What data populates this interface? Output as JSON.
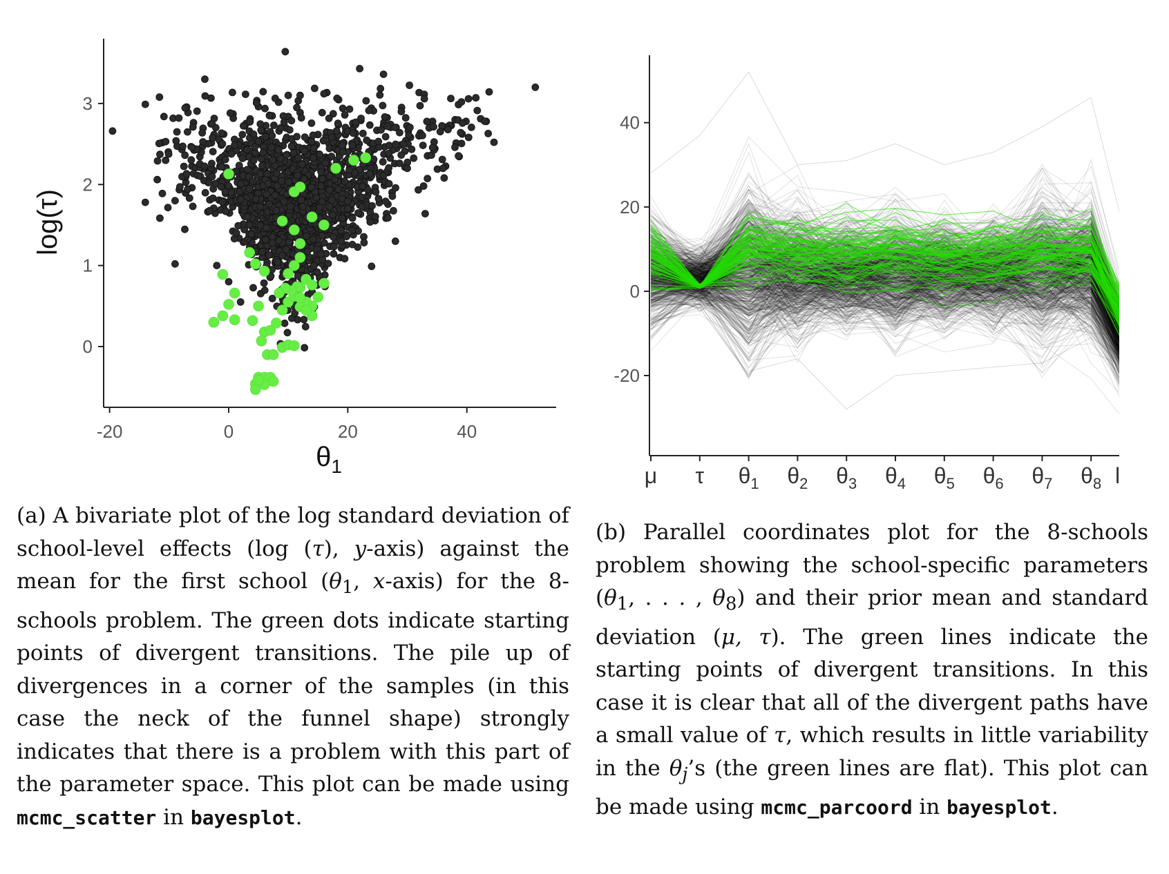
{
  "colors": {
    "points": "#2b2b2b",
    "divergent": "#66ee44",
    "lines": "#000000",
    "divergent_lines": "#22dd00",
    "axis": "#222222",
    "tick_text": "#555555"
  },
  "chart_data": [
    {
      "type": "scatter",
      "panel": "a",
      "xlabel": "θ₁",
      "ylabel": "log(τ)",
      "xlim": [
        -21,
        55
      ],
      "ylim": [
        -0.75,
        3.8
      ],
      "x_ticks": [
        -20,
        0,
        20,
        40
      ],
      "x_tick_labels": [
        "-20",
        "0",
        "20",
        "40"
      ],
      "y_ticks": [
        0,
        1,
        2,
        3
      ],
      "y_tick_labels": [
        "0",
        "1",
        "2",
        "3"
      ],
      "grid": false,
      "series": [
        {
          "role": "samples",
          "x_center": 11,
          "y_center": 1.9,
          "points": [
            [
              -19.5,
              2.66
            ],
            [
              -14,
              2.99
            ],
            [
              -14,
              1.78
            ],
            [
              -12,
              2.06
            ],
            [
              -9,
              1.8
            ],
            [
              -9,
              1.02
            ],
            [
              -4,
              3.3
            ],
            [
              -6,
              2.71
            ],
            [
              9.5,
              3.64
            ],
            [
              22,
              3.43
            ],
            [
              26,
              3.36
            ],
            [
              51.5,
              3.2
            ],
            [
              41.5,
              3.07
            ],
            [
              43,
              2.78
            ],
            [
              38,
              2.46
            ],
            [
              33,
              1.64
            ],
            [
              24,
              0.99
            ],
            [
              0,
              0.8
            ],
            [
              2,
              0.55
            ],
            [
              10,
              3.1
            ],
            [
              12,
              3.1
            ],
            [
              16,
              3.12
            ],
            [
              29,
              2.9
            ],
            [
              30,
              2.2
            ],
            [
              36,
              2.2
            ],
            [
              28,
              1.3
            ],
            [
              -2,
              1.0
            ],
            [
              20,
              1.7
            ]
          ]
        },
        {
          "role": "divergent",
          "points": [
            [
              -2.5,
              0.3
            ],
            [
              -1,
              0.38
            ],
            [
              0,
              0.52
            ],
            [
              1,
              0.33
            ],
            [
              0,
              2.13
            ],
            [
              -1,
              0.89
            ],
            [
              1,
              0.66
            ],
            [
              3.5,
              1.16
            ],
            [
              4.5,
              1.02
            ],
            [
              6,
              0.93
            ],
            [
              5,
              0.5
            ],
            [
              4,
              0.32
            ],
            [
              6,
              0.18
            ],
            [
              7,
              0.2
            ],
            [
              8,
              0.29
            ],
            [
              5.5,
              0.07
            ],
            [
              6.5,
              -0.1
            ],
            [
              7.5,
              -0.1
            ],
            [
              9,
              -0.01
            ],
            [
              10,
              0.02
            ],
            [
              11,
              0.01
            ],
            [
              9,
              0.45
            ],
            [
              10,
              0.55
            ],
            [
              11,
              0.62
            ],
            [
              12,
              0.73
            ],
            [
              13,
              0.83
            ],
            [
              10,
              0.9
            ],
            [
              11,
              1.0
            ],
            [
              12,
              1.1
            ],
            [
              14,
              0.76
            ],
            [
              15,
              0.61
            ],
            [
              14,
              0.5
            ],
            [
              13,
              0.55
            ],
            [
              12,
              0.49
            ],
            [
              11.5,
              0.74
            ],
            [
              10.5,
              0.69
            ],
            [
              9.5,
              0.72
            ],
            [
              8.5,
              0.66
            ],
            [
              12,
              0.6
            ],
            [
              11,
              1.44
            ],
            [
              12,
              1.27
            ],
            [
              11,
              1.91
            ],
            [
              12,
              1.97
            ],
            [
              14,
              1.6
            ],
            [
              9,
              1.55
            ],
            [
              16,
              1.5
            ],
            [
              18,
              2.2
            ],
            [
              21,
              2.3
            ],
            [
              23,
              2.33
            ],
            [
              5,
              -0.38
            ],
            [
              4.5,
              -0.46
            ],
            [
              5.5,
              -0.41
            ],
            [
              6,
              -0.38
            ],
            [
              7,
              -0.38
            ],
            [
              7.5,
              -0.43
            ],
            [
              4.5,
              -0.53
            ],
            [
              6,
              -0.47
            ],
            [
              5,
              -0.42
            ],
            [
              14,
              0.38
            ],
            [
              13,
              0.45
            ],
            [
              16,
              0.78
            ]
          ]
        }
      ]
    },
    {
      "type": "line",
      "panel": "b",
      "subtype": "parallel-coordinates",
      "categories": [
        "μ",
        "τ",
        "θ1",
        "θ2",
        "θ3",
        "θ4",
        "θ5",
        "θ6",
        "θ7",
        "θ8",
        "lp__"
      ],
      "category_labels": [
        {
          "main": "μ",
          "sub": ""
        },
        {
          "main": "τ",
          "sub": ""
        },
        {
          "main": "θ",
          "sub": "1"
        },
        {
          "main": "θ",
          "sub": "2"
        },
        {
          "main": "θ",
          "sub": "3"
        },
        {
          "main": "θ",
          "sub": "4"
        },
        {
          "main": "θ",
          "sub": "5"
        },
        {
          "main": "θ",
          "sub": "6"
        },
        {
          "main": "θ",
          "sub": "7"
        },
        {
          "main": "θ",
          "sub": "8"
        },
        {
          "main": "lp__",
          "sub": ""
        }
      ],
      "ylim": [
        -39,
        56
      ],
      "y_ticks": [
        -20,
        0,
        20,
        40
      ],
      "y_tick_labels": [
        "-20",
        "0",
        "20",
        "40"
      ],
      "grid": false,
      "series": [
        {
          "role": "samples",
          "mean": [
            4,
            3,
            5,
            4,
            4,
            4,
            4,
            4,
            5,
            5,
            -22
          ],
          "spread": [
            6,
            3,
            9,
            7,
            6,
            7,
            6,
            6,
            8,
            7,
            5
          ]
        },
        {
          "role": "divergent",
          "mean": [
            9,
            1,
            10,
            9,
            8,
            9,
            8,
            8,
            9,
            9,
            -14
          ],
          "spread": [
            4,
            0.3,
            2,
            2,
            2,
            2,
            2,
            2,
            2,
            2,
            4
          ]
        },
        {
          "role": "extremes",
          "max": [
            28,
            37,
            52,
            30,
            31,
            35,
            30,
            33,
            39,
            46,
            -1
          ],
          "min": [
            -9,
            1,
            -19,
            -16,
            -28,
            -20,
            -19,
            -18,
            -17,
            -11,
            -35
          ]
        }
      ]
    }
  ],
  "captions": {
    "a": {
      "p1": "(a) A bivariate plot of the log standard deviation of school-level effects (log (",
      "m1": "τ",
      "p2": "), ",
      "m2": "y",
      "p3": "-axis) against the mean for the first school (",
      "m3": "θ",
      "s3": "1",
      "p4": ", ",
      "m4": "x",
      "p5": "-axis) for the 8-schools problem. The green dots indicate starting points of divergent transitions. The pile up of divergences in a corner of the samples (in this case the neck of the funnel shape) strongly indicates that there is a problem with this part of the parameter space. This plot can be made using ",
      "code1": "mcmc_scatter",
      "p6": " in ",
      "code2": "bayesplot",
      "p7": "."
    },
    "b": {
      "p1": "(b) Parallel coordinates plot for the 8-schools problem showing the school-specific parameters (",
      "m1": "θ",
      "s1": "1",
      "p2": ", . . . , ",
      "m2": "θ",
      "s2": "8",
      "p3": ") and their prior mean and standard deviation (",
      "m3": "μ, τ",
      "p4": "). The green lines indicate the starting points of divergent transitions. In this case it is clear that all of the divergent paths have a small value of ",
      "m4": "τ",
      "p5": ", which results in little variability in the ",
      "m5": "θ",
      "s5": "j",
      "p6": "’s (the green lines are flat). This plot can be made using ",
      "code1": "mcmc_parcoord",
      "p7": " in ",
      "code2": "bayesplot",
      "p8": "."
    }
  }
}
